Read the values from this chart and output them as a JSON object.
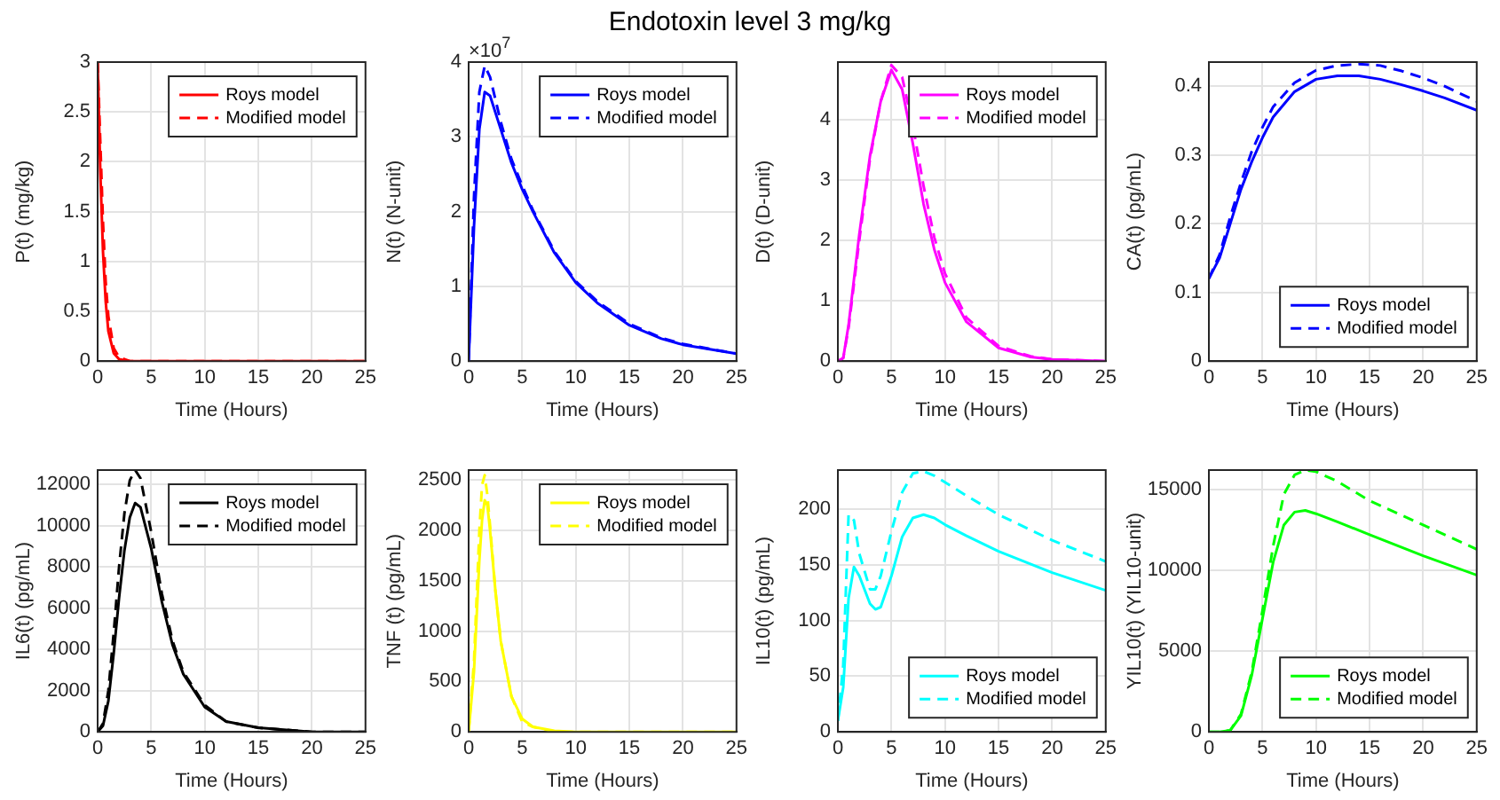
{
  "chart_data": [
    {
      "type": "line",
      "xlabel": "Time (Hours)",
      "ylabel": "P(t) (mg/kg)",
      "x": [
        0,
        0.25,
        0.5,
        0.75,
        1,
        1.5,
        2,
        3,
        5,
        10,
        15,
        20,
        25
      ],
      "xlim": [
        0,
        25
      ],
      "xticks": [
        0,
        5,
        10,
        15,
        20,
        25
      ],
      "ylim": [
        0,
        3
      ],
      "yticks": [
        0,
        0.5,
        1,
        1.5,
        2,
        2.5,
        3
      ],
      "grid": true,
      "legend": "top right",
      "marker": "none",
      "series": [
        {
          "name": "Roys model",
          "color": "#ff0000",
          "line_style": "solid",
          "values": [
            3,
            1.9,
            1.1,
            0.6,
            0.3,
            0.08,
            0.02,
            0,
            0,
            0,
            0,
            0,
            0
          ]
        },
        {
          "name": "Modified model",
          "color": "#ff0000",
          "line_style": "dashed",
          "values": [
            3,
            2.2,
            1.4,
            0.8,
            0.45,
            0.13,
            0.04,
            0,
            0,
            0,
            0,
            0,
            0
          ]
        }
      ]
    },
    {
      "type": "line",
      "title": "Endotoxin level 3 mg/kg",
      "xlabel": "Time (Hours)",
      "ylabel": "N(t) (N-unit)",
      "annotations": [
        "×10$^{7}$"
      ],
      "x": [
        0,
        0.5,
        1,
        1.5,
        2,
        3,
        4,
        5,
        6,
        8,
        10,
        12,
        15,
        18,
        20,
        25
      ],
      "xlim": [
        0,
        25
      ],
      "xticks": [
        0,
        5,
        10,
        15,
        20,
        25
      ],
      "ylim": [
        0,
        4
      ],
      "yticks": [
        0,
        1,
        2,
        3,
        4
      ],
      "grid": true,
      "legend": "top right",
      "marker": "none",
      "series": [
        {
          "name": "Roys model",
          "color": "#0000ff",
          "line_style": "solid",
          "values": [
            0,
            1.8,
            3.1,
            3.6,
            3.55,
            3.1,
            2.65,
            2.3,
            2,
            1.45,
            1.05,
            0.78,
            0.48,
            0.3,
            0.22,
            0.1
          ]
        },
        {
          "name": "Modified model",
          "color": "#0000ff",
          "line_style": "dashed",
          "values": [
            0,
            2.2,
            3.6,
            3.95,
            3.8,
            3.2,
            2.7,
            2.35,
            2.02,
            1.47,
            1.07,
            0.8,
            0.5,
            0.31,
            0.23,
            0.1
          ]
        }
      ]
    },
    {
      "type": "line",
      "xlabel": "Time (Hours)",
      "ylabel": "D(t) (D-unit)",
      "x": [
        0,
        0.5,
        1,
        2,
        3,
        4,
        5,
        6,
        7,
        8,
        9,
        10,
        12,
        15,
        18,
        20,
        25
      ],
      "xlim": [
        0,
        25
      ],
      "xticks": [
        0,
        5,
        10,
        15,
        20,
        25
      ],
      "ylim": [
        0,
        4.95
      ],
      "yticks": [
        0,
        1,
        2,
        3,
        4
      ],
      "grid": true,
      "legend": "top right",
      "marker": "none",
      "series": [
        {
          "name": "Roys model",
          "color": "#ff00ff",
          "line_style": "solid",
          "values": [
            0,
            0.05,
            0.6,
            2.1,
            3.4,
            4.3,
            4.82,
            4.5,
            3.6,
            2.6,
            1.85,
            1.3,
            0.65,
            0.22,
            0.07,
            0.03,
            0
          ]
        },
        {
          "name": "Modified model",
          "color": "#ff00ff",
          "line_style": "dashed",
          "values": [
            0,
            0.05,
            0.55,
            2,
            3.35,
            4.3,
            4.9,
            4.7,
            3.9,
            2.9,
            2.05,
            1.45,
            0.72,
            0.25,
            0.08,
            0.03,
            0
          ]
        }
      ]
    },
    {
      "type": "line",
      "xlabel": "Time (Hours)",
      "ylabel": "CA(t) (pg/mL)",
      "x": [
        0,
        1,
        2,
        3,
        4,
        5,
        6,
        8,
        10,
        12,
        14,
        16,
        18,
        20,
        22,
        25
      ],
      "xlim": [
        0,
        25
      ],
      "xticks": [
        0,
        5,
        10,
        15,
        20,
        25
      ],
      "ylim": [
        0,
        0.435
      ],
      "yticks": [
        0,
        0.1,
        0.2,
        0.3,
        0.4
      ],
      "grid": true,
      "legend": "bottom right",
      "marker": "none",
      "series": [
        {
          "name": "Roys model",
          "color": "#0000ff",
          "line_style": "solid",
          "values": [
            0.12,
            0.15,
            0.2,
            0.25,
            0.29,
            0.325,
            0.355,
            0.392,
            0.41,
            0.415,
            0.415,
            0.41,
            0.402,
            0.393,
            0.383,
            0.365
          ]
        },
        {
          "name": "Modified model",
          "color": "#0000ff",
          "line_style": "dashed",
          "values": [
            0.12,
            0.155,
            0.21,
            0.26,
            0.305,
            0.34,
            0.37,
            0.405,
            0.423,
            0.43,
            0.432,
            0.43,
            0.422,
            0.412,
            0.4,
            0.378
          ]
        }
      ]
    },
    {
      "type": "line",
      "xlabel": "Time (Hours)",
      "ylabel": "IL6(t) (pg/mL)",
      "x": [
        0,
        0.5,
        1,
        1.5,
        2,
        2.5,
        3,
        3.5,
        4,
        5,
        6,
        7,
        8,
        10,
        12,
        15,
        20,
        25
      ],
      "xlim": [
        0,
        25
      ],
      "xticks": [
        0,
        5,
        10,
        15,
        20,
        25
      ],
      "ylim": [
        0,
        12700
      ],
      "yticks": [
        0,
        2000,
        4000,
        6000,
        8000,
        10000,
        12000
      ],
      "grid": true,
      "legend": "top right",
      "marker": "none",
      "series": [
        {
          "name": "Roys model",
          "color": "#000000",
          "line_style": "solid",
          "values": [
            0,
            300,
            1500,
            3800,
            6500,
            8800,
            10400,
            11100,
            10900,
            8900,
            6300,
            4200,
            2800,
            1200,
            500,
            200,
            0,
            0
          ]
        },
        {
          "name": "Modified model",
          "color": "#000000",
          "line_style": "dashed",
          "values": [
            0,
            400,
            2000,
            4800,
            8000,
            10600,
            12200,
            12700,
            12300,
            9700,
            6700,
            4400,
            2900,
            1300,
            500,
            200,
            0,
            0
          ]
        }
      ]
    },
    {
      "type": "line",
      "xlabel": "Time (Hours)",
      "ylabel": "TNF (t) (pg/mL)",
      "x": [
        0,
        0.5,
        1,
        1.25,
        1.5,
        1.75,
        2,
        2.5,
        3,
        4,
        5,
        6,
        8,
        10,
        15,
        25
      ],
      "xlim": [
        0,
        25
      ],
      "xticks": [
        0,
        5,
        10,
        15,
        20,
        25
      ],
      "ylim": [
        0,
        2600
      ],
      "yticks": [
        0,
        500,
        1000,
        1500,
        2000,
        2500
      ],
      "grid": true,
      "legend": "top right",
      "marker": "none",
      "series": [
        {
          "name": "Roys model",
          "color": "#ffff00",
          "line_style": "solid",
          "values": [
            0,
            600,
            1700,
            2100,
            2300,
            2250,
            2000,
            1400,
            900,
            350,
            130,
            50,
            10,
            0,
            0,
            0
          ]
        },
        {
          "name": "Modified model",
          "color": "#ffff00",
          "line_style": "dashed",
          "values": [
            0,
            700,
            2000,
            2450,
            2550,
            2350,
            2050,
            1400,
            900,
            350,
            100,
            50,
            0,
            0,
            0,
            0
          ]
        }
      ]
    },
    {
      "type": "line",
      "xlabel": "Time (Hours)",
      "ylabel": "IL10(t) (pg/mL)",
      "x": [
        0,
        0.5,
        1,
        1.5,
        2,
        3,
        3.5,
        4,
        5,
        6,
        7,
        8,
        9,
        10,
        12,
        15,
        20,
        25
      ],
      "xlim": [
        0,
        25
      ],
      "xticks": [
        0,
        5,
        10,
        15,
        20,
        25
      ],
      "ylim": [
        0,
        235
      ],
      "yticks": [
        0,
        50,
        100,
        150,
        200
      ],
      "grid": true,
      "legend": "bottom right",
      "marker": "none",
      "series": [
        {
          "name": "Roys model",
          "color": "#00ffff",
          "line_style": "solid",
          "values": [
            10,
            40,
            120,
            148,
            140,
            115,
            110,
            112,
            140,
            175,
            192,
            195,
            192,
            186,
            176,
            162,
            143,
            127
          ]
        },
        {
          "name": "Modified model",
          "color": "#00ffff",
          "line_style": "dashed",
          "values": [
            10,
            60,
            195,
            190,
            160,
            128,
            128,
            140,
            180,
            215,
            232,
            234,
            230,
            224,
            212,
            195,
            172,
            153
          ]
        }
      ]
    },
    {
      "type": "line",
      "xlabel": "Time (Hours)",
      "ylabel": "YIL10(t) (YIL10-unit)",
      "x": [
        0,
        1,
        2,
        3,
        4,
        5,
        6,
        7,
        8,
        9,
        10,
        12,
        15,
        20,
        25
      ],
      "xlim": [
        0,
        25
      ],
      "xticks": [
        0,
        5,
        10,
        15,
        20,
        25
      ],
      "ylim": [
        0,
        16200
      ],
      "yticks": [
        0,
        5000,
        10000,
        15000
      ],
      "grid": true,
      "legend": "bottom right",
      "marker": "none",
      "series": [
        {
          "name": "Roys model",
          "color": "#00ff00",
          "line_style": "solid",
          "values": [
            0,
            0,
            100,
            1000,
            3500,
            7000,
            10500,
            12800,
            13600,
            13700,
            13500,
            13000,
            12200,
            10900,
            9700
          ]
        },
        {
          "name": "Modified model",
          "color": "#00ff00",
          "line_style": "dashed",
          "values": [
            0,
            0,
            100,
            1100,
            3700,
            7500,
            11500,
            14700,
            15900,
            16200,
            16100,
            15500,
            14300,
            12800,
            11300
          ]
        }
      ]
    }
  ]
}
